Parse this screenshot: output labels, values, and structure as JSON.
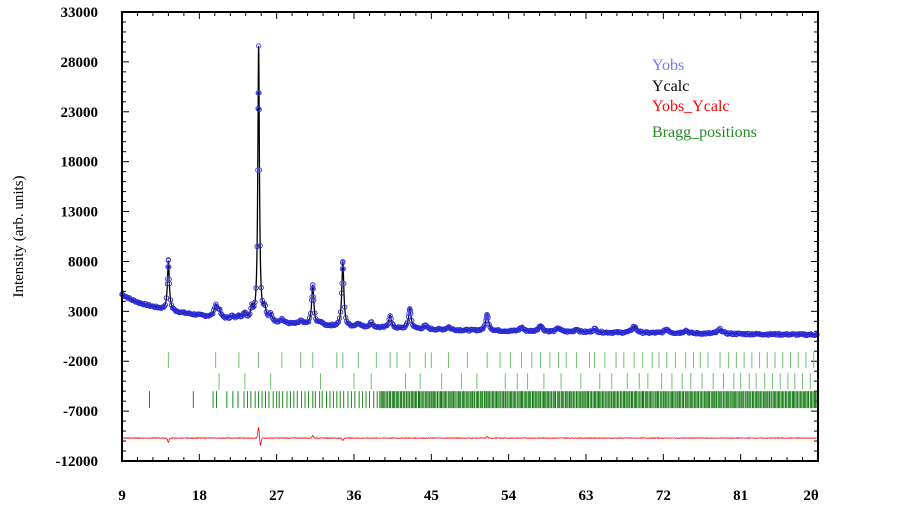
{
  "chart_data": {
    "type": "line",
    "title": "",
    "ylabel": "Intensity (arb. units)",
    "xlabel": "2θ",
    "xlim": [
      9,
      90
    ],
    "ylim": [
      -12000,
      33000
    ],
    "x_ticks": [
      "9",
      "18",
      "27",
      "36",
      "45",
      "54",
      "63",
      "72",
      "81"
    ],
    "x_tick_values": [
      9,
      18,
      27,
      36,
      45,
      54,
      63,
      72,
      81
    ],
    "y_ticks": [
      "-12000",
      "-7000",
      "-2000",
      "3000",
      "8000",
      "13000",
      "18000",
      "23000",
      "28000",
      "33000"
    ],
    "y_tick_values": [
      -12000,
      -7000,
      -2000,
      3000,
      8000,
      13000,
      18000,
      23000,
      28000,
      33000
    ],
    "legend_position": "top-right",
    "series": [
      {
        "name": "Yobs",
        "color": "#7777ee",
        "marker": "circle-open"
      },
      {
        "name": "Ycalc",
        "color": "#000000",
        "marker": "line"
      },
      {
        "name": "Yobs_Ycalc",
        "color": "#ff0000",
        "marker": "line"
      },
      {
        "name": "Bragg_positions",
        "color": "#228b22",
        "marker": "tick"
      }
    ],
    "background": [
      [
        9.0,
        4700
      ],
      [
        10,
        4200
      ],
      [
        11,
        3850
      ],
      [
        12,
        3600
      ],
      [
        14,
        3150
      ],
      [
        16,
        2850
      ],
      [
        18,
        2600
      ],
      [
        21,
        2250
      ],
      [
        24,
        2000
      ],
      [
        27,
        1800
      ],
      [
        30,
        1650
      ],
      [
        35,
        1450
      ],
      [
        40,
        1300
      ],
      [
        45,
        1180
      ],
      [
        50,
        1080
      ],
      [
        55,
        1000
      ],
      [
        60,
        940
      ],
      [
        65,
        880
      ],
      [
        70,
        830
      ],
      [
        75,
        780
      ],
      [
        80,
        740
      ],
      [
        85,
        700
      ],
      [
        90,
        660
      ]
    ],
    "peaks": [
      {
        "x": 14.4,
        "height": 5000,
        "width": 0.13
      },
      {
        "x": 19.9,
        "height": 1200,
        "width": 0.2
      },
      {
        "x": 20.3,
        "height": 700,
        "width": 0.2
      },
      {
        "x": 21.8,
        "height": 300,
        "width": 0.2
      },
      {
        "x": 22.6,
        "height": 450,
        "width": 0.2
      },
      {
        "x": 23.3,
        "height": 700,
        "width": 0.2
      },
      {
        "x": 24.1,
        "height": 1200,
        "width": 0.15
      },
      {
        "x": 24.9,
        "height": 27500,
        "width": 0.11
      },
      {
        "x": 25.6,
        "height": 1200,
        "width": 0.18
      },
      {
        "x": 26.3,
        "height": 700,
        "width": 0.2
      },
      {
        "x": 27.6,
        "height": 400,
        "width": 0.25
      },
      {
        "x": 29.8,
        "height": 350,
        "width": 0.25
      },
      {
        "x": 31.2,
        "height": 4000,
        "width": 0.15
      },
      {
        "x": 32.1,
        "height": 350,
        "width": 0.2
      },
      {
        "x": 34.7,
        "height": 6500,
        "width": 0.14
      },
      {
        "x": 36.5,
        "height": 400,
        "width": 0.25
      },
      {
        "x": 38.0,
        "height": 500,
        "width": 0.25
      },
      {
        "x": 40.2,
        "height": 1300,
        "width": 0.18
      },
      {
        "x": 42.5,
        "height": 2000,
        "width": 0.18
      },
      {
        "x": 44.3,
        "height": 350,
        "width": 0.25
      },
      {
        "x": 47.0,
        "height": 300,
        "width": 0.25
      },
      {
        "x": 51.5,
        "height": 1600,
        "width": 0.2
      },
      {
        "x": 55.5,
        "height": 400,
        "width": 0.25
      },
      {
        "x": 57.7,
        "height": 650,
        "width": 0.25
      },
      {
        "x": 59.8,
        "height": 400,
        "width": 0.25
      },
      {
        "x": 61.9,
        "height": 300,
        "width": 0.25
      },
      {
        "x": 64.0,
        "height": 350,
        "width": 0.25
      },
      {
        "x": 68.6,
        "height": 650,
        "width": 0.3
      },
      {
        "x": 72.4,
        "height": 400,
        "width": 0.3
      },
      {
        "x": 74.6,
        "height": 300,
        "width": 0.3
      },
      {
        "x": 78.6,
        "height": 450,
        "width": 0.3
      }
    ],
    "residual_baseline": -9700,
    "residual_features": [
      {
        "x": 14.4,
        "amp": -450
      },
      {
        "x": 24.9,
        "amp": 1100
      },
      {
        "x": 25.1,
        "amp": -800
      },
      {
        "x": 31.2,
        "amp": 250
      },
      {
        "x": 34.7,
        "amp": -250
      },
      {
        "x": 51.5,
        "amp": 150
      }
    ],
    "bragg_rows": [
      {
        "y_range": [
          -2700,
          -1100
        ],
        "positions": [
          14.4,
          19.9,
          22.6,
          24.9,
          27.6,
          29.8,
          31.2,
          34.0,
          34.7,
          36.5,
          38.6,
          40.2,
          41.0,
          42.5,
          44.3,
          45.0,
          47.0,
          49.2,
          51.5,
          53.0,
          54.2,
          55.5,
          56.7,
          57.7,
          58.8,
          59.8,
          60.7,
          61.9,
          63.4,
          64.0,
          65.2,
          66.5,
          67.4,
          68.6,
          69.6,
          70.7,
          71.5,
          72.4,
          73.4,
          74.6,
          75.5,
          76.3,
          77.2,
          78.6,
          79.6,
          80.5,
          81.4,
          82.3,
          83.2,
          84.1,
          85.0,
          85.9,
          86.8,
          87.7,
          88.6,
          89.5
        ]
      },
      {
        "y_range": [
          -4800,
          -3200
        ],
        "positions": [
          20.3,
          23.3,
          26.3,
          32.1,
          36.0,
          38.0,
          42.0,
          43.7,
          46.2,
          48.5,
          50.3,
          53.6,
          55.0,
          56.2,
          58.1,
          60.1,
          62.4,
          64.6,
          66.0,
          67.8,
          69.2,
          70.2,
          71.8,
          73.0,
          74.2,
          75.2,
          76.5,
          77.8,
          79.0,
          80.2,
          81.0,
          82.0,
          82.8,
          83.8,
          84.7,
          85.6,
          86.5,
          87.3,
          88.2,
          89.1
        ]
      }
    ],
    "bragg_dense_row": {
      "y_range": [
        -6700,
        -5000
      ],
      "sparse_positions": [
        12.2,
        17.3,
        19.6,
        20.0,
        21.2,
        21.9,
        22.5,
        23.2,
        23.6,
        24.0,
        24.5,
        24.9,
        25.3,
        25.7,
        26.1,
        26.6,
        27.0,
        27.3,
        27.7,
        28.2,
        28.6,
        29.0,
        29.4,
        29.9,
        30.3,
        30.7,
        31.2,
        31.5,
        32.0,
        32.3,
        32.8,
        33.2,
        33.6,
        34.0,
        34.4,
        34.8,
        35.3,
        35.7,
        36.1,
        36.6,
        37.0,
        37.4,
        37.8,
        38.3,
        38.7
      ],
      "dense_start": 39.0,
      "dense_end": 90.0,
      "dense_step": 0.16
    }
  }
}
